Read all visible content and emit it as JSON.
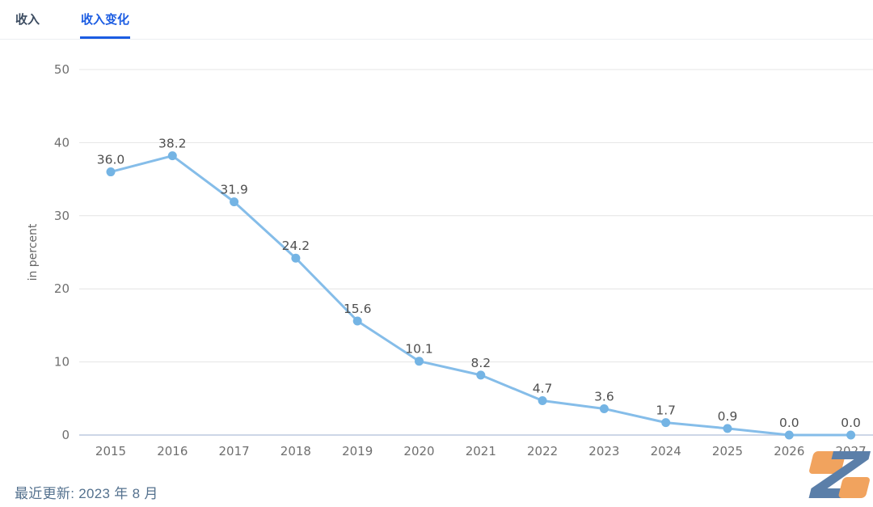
{
  "tabs": [
    {
      "label": "收入",
      "active": false
    },
    {
      "label": "收入变化",
      "active": true
    }
  ],
  "footer": {
    "last_updated": "最近更新: 2023 年 8 月"
  },
  "logo": {
    "name": "z-logo",
    "blue": "#5b7fa9",
    "orange": "#f1a35e"
  },
  "colors": {
    "tab_active": "#1b5ce2",
    "tab_inactive": "#3c4c61",
    "footer_text": "#54718e"
  },
  "chart_data": {
    "type": "line",
    "title": "",
    "xlabel": "",
    "ylabel": "in percent",
    "categories": [
      "2015",
      "2016",
      "2017",
      "2018",
      "2019",
      "2020",
      "2021",
      "2022",
      "2023",
      "2024",
      "2025",
      "2026",
      "2027"
    ],
    "values": [
      36.0,
      38.2,
      31.9,
      24.2,
      15.6,
      10.1,
      8.2,
      4.7,
      3.6,
      1.7,
      0.9,
      0.0,
      0.0
    ],
    "ylim": [
      0,
      50
    ],
    "yticks": [
      0,
      10,
      20,
      30,
      40,
      50
    ],
    "grid": true,
    "legend": "none",
    "line_color": "#85bde9",
    "point_color": "#74b4e4",
    "label_color": "#4f4f4f",
    "tick_color": "#6f6f6f",
    "ylabel_color": "#666666",
    "grid_color": "#e4e4e4",
    "zero_axis_color": "#cdd6e7"
  }
}
